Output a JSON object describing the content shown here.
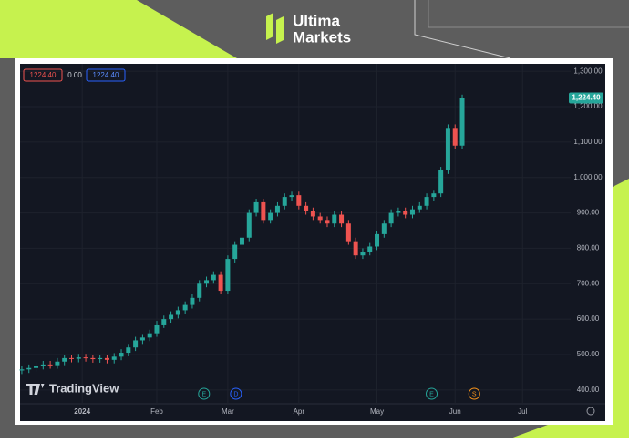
{
  "brand": {
    "line1": "Ultima",
    "line2": "Markets"
  },
  "watermark": "TradingView",
  "chart_data": {
    "type": "candlestick",
    "legend": [
      "1224.40",
      "0.00",
      "1224.40"
    ],
    "last_price_label": "1,224.40",
    "up_color": "#26a69a",
    "down_color": "#ef5350",
    "grid": true,
    "x": [
      0,
      2,
      4,
      6,
      8,
      10,
      12,
      14,
      16,
      18,
      20,
      22,
      24,
      26,
      28,
      30,
      32,
      34,
      36,
      38,
      40,
      42,
      44,
      46,
      48,
      50,
      52,
      54,
      56,
      58,
      60,
      62,
      64,
      66,
      68,
      70,
      72,
      74,
      76,
      78,
      80,
      82,
      84,
      86,
      88,
      90,
      92,
      94,
      96,
      98,
      100,
      102,
      104,
      106,
      108,
      110,
      112,
      114,
      116,
      118,
      120,
      122,
      124
    ],
    "open": [
      455,
      458,
      462,
      468,
      472,
      470,
      480,
      490,
      488,
      492,
      490,
      487,
      490,
      485,
      494,
      505,
      520,
      540,
      548,
      560,
      585,
      600,
      612,
      625,
      640,
      660,
      700,
      710,
      725,
      680,
      770,
      810,
      830,
      900,
      930,
      880,
      900,
      920,
      945,
      950,
      920,
      905,
      890,
      880,
      870,
      895,
      870,
      820,
      780,
      790,
      805,
      840,
      870,
      900,
      905,
      895,
      910,
      920,
      945,
      955,
      1020,
      1140,
      1090
    ],
    "high": [
      468,
      472,
      478,
      482,
      482,
      490,
      500,
      500,
      502,
      502,
      500,
      500,
      500,
      504,
      515,
      530,
      550,
      558,
      570,
      595,
      610,
      622,
      635,
      650,
      670,
      710,
      720,
      735,
      735,
      780,
      820,
      840,
      910,
      940,
      940,
      910,
      930,
      955,
      960,
      960,
      930,
      915,
      900,
      890,
      905,
      905,
      880,
      830,
      800,
      815,
      850,
      880,
      910,
      915,
      915,
      920,
      930,
      955,
      965,
      1030,
      1150,
      1150,
      1234
    ],
    "low": [
      445,
      448,
      452,
      458,
      460,
      460,
      470,
      478,
      478,
      480,
      477,
      477,
      475,
      475,
      484,
      495,
      510,
      530,
      538,
      550,
      575,
      590,
      602,
      615,
      630,
      650,
      690,
      700,
      670,
      670,
      760,
      800,
      820,
      890,
      870,
      870,
      890,
      910,
      935,
      910,
      895,
      880,
      870,
      860,
      860,
      860,
      810,
      770,
      770,
      780,
      795,
      830,
      860,
      890,
      885,
      885,
      900,
      910,
      935,
      945,
      1010,
      1080,
      1080
    ],
    "close": [
      458,
      462,
      468,
      472,
      470,
      480,
      490,
      488,
      492,
      490,
      487,
      490,
      485,
      494,
      505,
      520,
      540,
      548,
      560,
      585,
      600,
      612,
      625,
      640,
      660,
      700,
      710,
      725,
      680,
      770,
      810,
      830,
      900,
      930,
      880,
      900,
      920,
      945,
      950,
      920,
      905,
      890,
      880,
      870,
      895,
      870,
      820,
      780,
      790,
      805,
      840,
      870,
      900,
      905,
      895,
      910,
      920,
      945,
      955,
      1020,
      1140,
      1090,
      1224.4
    ],
    "xlim": [
      -0.5,
      153
    ],
    "xticks": [
      {
        "value": 17,
        "label": "2024"
      },
      {
        "value": 38,
        "label": "Feb"
      },
      {
        "value": 58,
        "label": "Mar"
      },
      {
        "value": 78,
        "label": "Apr"
      },
      {
        "value": 100,
        "label": "May"
      },
      {
        "value": 122,
        "label": "Jun"
      },
      {
        "value": 141,
        "label": "Jul"
      }
    ],
    "ylim": [
      361,
      1321
    ],
    "yticks": [
      {
        "value": 400,
        "label": "400.00"
      },
      {
        "value": 500,
        "label": "500.00"
      },
      {
        "value": 600,
        "label": "600.00"
      },
      {
        "value": 700,
        "label": "700.00"
      },
      {
        "value": 800,
        "label": "800.00"
      },
      {
        "value": 900,
        "label": "900.00"
      },
      {
        "value": 1000,
        "label": "1,000.00"
      },
      {
        "value": 1100,
        "label": "1,100.00"
      },
      {
        "value": 1200,
        "label": "1,200.00"
      },
      {
        "value": 1300,
        "label": "1,300.00"
      }
    ],
    "events": [
      {
        "label": "E",
        "x": 51.3,
        "color": "#26a69a"
      },
      {
        "label": "D",
        "x": 60.3,
        "color": "#2962ff"
      },
      {
        "label": "E",
        "x": 115.4,
        "color": "#26a69a"
      },
      {
        "label": "S",
        "x": 127.4,
        "color": "#f7931a"
      }
    ]
  }
}
